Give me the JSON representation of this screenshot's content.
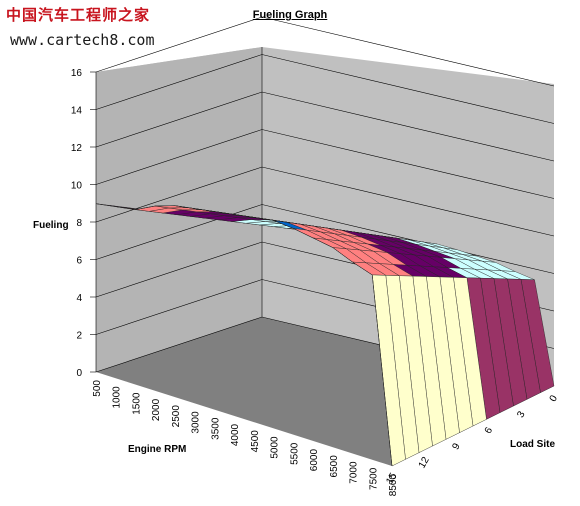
{
  "watermark": {
    "site_name": "中国汽车工程师之家",
    "url": "www.cartech8.com"
  },
  "chart_data": {
    "type": "surface",
    "title": "Fueling Graph",
    "xlabel": "Engine RPM",
    "ylabel": "Load Site",
    "zlabel": "Fueling",
    "rpm": [
      500,
      1000,
      1500,
      2000,
      2500,
      3000,
      3500,
      4000,
      4500,
      5000,
      5500,
      6000,
      6500,
      7000,
      7500,
      8500
    ],
    "load_ticks": [
      0,
      3,
      6,
      9,
      12,
      15
    ],
    "zlim": [
      0,
      16
    ],
    "z_ticks": [
      0,
      2,
      4,
      6,
      8,
      10,
      12,
      14,
      16
    ],
    "color_bands": [
      {
        "from": 0,
        "to": 2,
        "color": "#9a9aff"
      },
      {
        "from": 2,
        "to": 4,
        "color": "#993366"
      },
      {
        "from": 4,
        "to": 6,
        "color": "#ffffcc"
      },
      {
        "from": 6,
        "to": 8,
        "color": "#ccffff"
      },
      {
        "from": 8,
        "to": 10,
        "color": "#660066"
      },
      {
        "from": 10,
        "to": 12,
        "color": "#ff8080"
      },
      {
        "from": 12,
        "to": 14,
        "color": "#0066cc"
      },
      {
        "from": 14,
        "to": 16,
        "color": "#ccccff"
      }
    ],
    "fueling_profile": [
      {
        "rpm": 500,
        "value": 10.2
      },
      {
        "rpm": 1000,
        "value": 10.4
      },
      {
        "rpm": 1500,
        "value": 10.6
      },
      {
        "rpm": 2000,
        "value": 11.2
      },
      {
        "rpm": 2500,
        "value": 11.6
      },
      {
        "rpm": 3000,
        "value": 11.8
      },
      {
        "rpm": 3500,
        "value": 12.0
      },
      {
        "rpm": 4000,
        "value": 12.2
      },
      {
        "rpm": 4500,
        "value": 12.4
      },
      {
        "rpm": 5000,
        "value": 12.6
      },
      {
        "rpm": 5500,
        "value": 12.5
      },
      {
        "rpm": 6000,
        "value": 12.3
      },
      {
        "rpm": 6500,
        "value": 12.1
      },
      {
        "rpm": 7000,
        "value": 11.6
      },
      {
        "rpm": 7500,
        "value": 11.2
      },
      {
        "rpm": 8500,
        "value": 0
      }
    ],
    "grid": true
  }
}
